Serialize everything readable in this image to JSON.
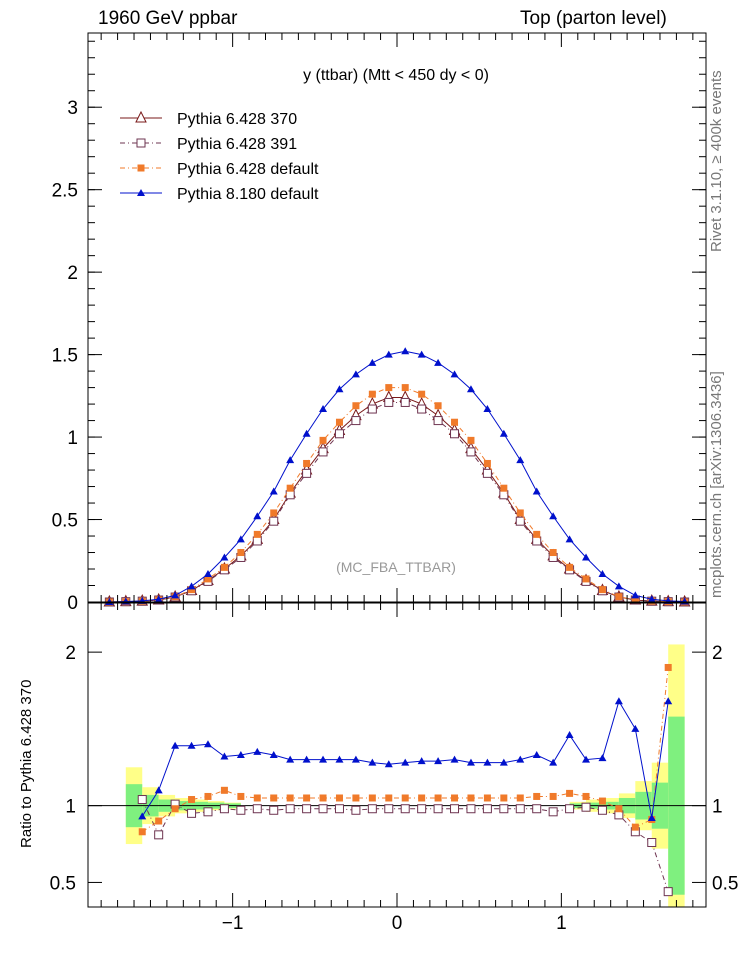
{
  "header": {
    "left": "1960 GeV ppbar",
    "right": "Top (parton level)"
  },
  "side_labels": {
    "rivet": "Rivet 3.1.10, ≥ 400k events",
    "mcplots": "mcplots.cern.ch [arXiv:1306.3436]"
  },
  "colors": {
    "p6_370": "#7a1a1a",
    "p6_391": "#6e3450",
    "p6_default": "#f07a2a",
    "p8": "#0010cc",
    "band_green": "#7ff07f",
    "band_yellow": "#ffff88",
    "watermark": "#999999"
  },
  "chart_data": [
    {
      "type": "line",
      "title": "y (ttbar) (Mtt < 450 dy < 0)",
      "watermark": "(MC_FBA_TTBAR)",
      "xlabel": "",
      "ylabel": "",
      "xlim": [
        -1.88,
        1.88
      ],
      "ylim": [
        0,
        3.45
      ],
      "yticks": [
        0,
        0.5,
        1,
        1.5,
        2,
        2.5,
        3
      ],
      "ytick_labels": [
        "0",
        "0.5",
        "1",
        "1.5",
        "2",
        "2.5",
        "3"
      ],
      "x": [
        -1.75,
        -1.65,
        -1.55,
        -1.45,
        -1.35,
        -1.25,
        -1.15,
        -1.05,
        -0.95,
        -0.85,
        -0.75,
        -0.65,
        -0.55,
        -0.45,
        -0.35,
        -0.25,
        -0.15,
        -0.05,
        0.05,
        0.15,
        0.25,
        0.35,
        0.45,
        0.55,
        0.65,
        0.75,
        0.85,
        0.95,
        1.05,
        1.15,
        1.25,
        1.35,
        1.45,
        1.55,
        1.65,
        1.75
      ],
      "legend": [
        "Pythia 6.428 370",
        "Pythia 6.428 391",
        "Pythia 6.428 default",
        "Pythia 8.180 default"
      ],
      "series": [
        {
          "name": "Pythia 6.428 370",
          "marker": "open-triangle",
          "line": "solid",
          "values": [
            0.0,
            0.002,
            0.005,
            0.012,
            0.03,
            0.07,
            0.13,
            0.2,
            0.28,
            0.38,
            0.5,
            0.66,
            0.8,
            0.93,
            1.04,
            1.13,
            1.2,
            1.24,
            1.24,
            1.2,
            1.13,
            1.04,
            0.93,
            0.8,
            0.66,
            0.5,
            0.38,
            0.28,
            0.2,
            0.13,
            0.07,
            0.03,
            0.012,
            0.005,
            0.002,
            0.0
          ]
        },
        {
          "name": "Pythia 6.428 391",
          "marker": "open-square",
          "line": "dash-dot",
          "values": [
            0.0,
            0.002,
            0.005,
            0.012,
            0.03,
            0.068,
            0.125,
            0.195,
            0.27,
            0.37,
            0.49,
            0.65,
            0.78,
            0.91,
            1.02,
            1.1,
            1.17,
            1.21,
            1.21,
            1.17,
            1.1,
            1.02,
            0.91,
            0.78,
            0.65,
            0.49,
            0.37,
            0.27,
            0.195,
            0.125,
            0.068,
            0.03,
            0.012,
            0.005,
            0.002,
            0.0
          ]
        },
        {
          "name": "Pythia 6.428 default",
          "marker": "filled-square",
          "line": "dash-dot",
          "values": [
            0.0,
            0.002,
            0.005,
            0.013,
            0.032,
            0.075,
            0.14,
            0.21,
            0.3,
            0.41,
            0.54,
            0.69,
            0.84,
            0.98,
            1.09,
            1.19,
            1.26,
            1.3,
            1.3,
            1.26,
            1.19,
            1.09,
            0.98,
            0.84,
            0.69,
            0.54,
            0.41,
            0.3,
            0.21,
            0.14,
            0.075,
            0.032,
            0.013,
            0.005,
            0.002,
            0.0
          ]
        },
        {
          "name": "Pythia 8.180 default",
          "marker": "filled-triangle",
          "line": "solid",
          "values": [
            0.0,
            0.003,
            0.007,
            0.017,
            0.04,
            0.095,
            0.17,
            0.27,
            0.38,
            0.52,
            0.67,
            0.86,
            1.02,
            1.17,
            1.29,
            1.38,
            1.45,
            1.5,
            1.52,
            1.5,
            1.45,
            1.38,
            1.29,
            1.17,
            1.02,
            0.86,
            0.67,
            0.52,
            0.38,
            0.27,
            0.17,
            0.095,
            0.04,
            0.017,
            0.007,
            0.003
          ]
        }
      ]
    },
    {
      "type": "line",
      "title": "",
      "ylabel": "Ratio to Pythia 6.428 370",
      "xlim": [
        -1.88,
        1.88
      ],
      "ylim": [
        0.34,
        2.32
      ],
      "xticks": [
        -1,
        0,
        1
      ],
      "xtick_labels": [
        "−1",
        "0",
        "1"
      ],
      "yticks": [
        0.5,
        1,
        2
      ],
      "ytick_labels": [
        "0.5",
        "1",
        "2"
      ],
      "x": [
        -1.55,
        -1.45,
        -1.35,
        -1.25,
        -1.15,
        -1.05,
        -0.95,
        -0.85,
        -0.75,
        -0.65,
        -0.55,
        -0.45,
        -0.35,
        -0.25,
        -0.15,
        -0.05,
        0.05,
        0.15,
        0.25,
        0.35,
        0.45,
        0.55,
        0.65,
        0.75,
        0.85,
        0.95,
        1.05,
        1.15,
        1.25,
        1.35,
        1.45,
        1.55,
        1.65
      ],
      "band_x": [
        -1.6,
        -1.5,
        -1.4,
        -1.3,
        -1.2,
        -1.1,
        -1.0,
        1.1,
        1.2,
        1.3,
        1.4,
        1.5,
        1.6,
        1.7
      ],
      "band_green": [
        0.14,
        0.07,
        0.04,
        0.03,
        0.025,
        0.02,
        0.015,
        0.015,
        0.02,
        0.025,
        0.05,
        0.09,
        0.15,
        0.58
      ],
      "band_yellow": [
        0.25,
        0.12,
        0.07,
        0.05,
        0.04,
        0.03,
        0.02,
        0.025,
        0.04,
        0.05,
        0.08,
        0.16,
        0.28,
        1.05
      ],
      "series": [
        {
          "name": "Pythia 6.428 391",
          "values": [
            1.04,
            0.81,
            1.01,
            0.95,
            0.96,
            0.98,
            0.97,
            0.98,
            0.97,
            0.98,
            0.98,
            0.98,
            0.98,
            0.97,
            0.98,
            0.98,
            0.98,
            0.98,
            0.98,
            0.98,
            0.98,
            0.98,
            0.98,
            0.98,
            0.98,
            0.96,
            0.98,
            0.99,
            0.97,
            0.94,
            0.83,
            0.76,
            0.44
          ]
        },
        {
          "name": "Pythia 6.428 default",
          "values": [
            0.83,
            0.9,
            0.98,
            1.04,
            1.06,
            1.1,
            1.06,
            1.05,
            1.05,
            1.05,
            1.05,
            1.05,
            1.05,
            1.05,
            1.05,
            1.05,
            1.05,
            1.05,
            1.05,
            1.05,
            1.05,
            1.05,
            1.05,
            1.05,
            1.06,
            1.06,
            1.08,
            1.06,
            1.03,
            0.98,
            0.86,
            0.91,
            1.9
          ]
        },
        {
          "name": "Pythia 8.180 default",
          "values": [
            0.93,
            1.1,
            1.39,
            1.39,
            1.4,
            1.32,
            1.33,
            1.35,
            1.33,
            1.3,
            1.3,
            1.3,
            1.3,
            1.3,
            1.28,
            1.27,
            1.28,
            1.29,
            1.29,
            1.3,
            1.28,
            1.28,
            1.28,
            1.3,
            1.33,
            1.28,
            1.46,
            1.3,
            1.31,
            1.68,
            1.5,
            0.92,
            1.68
          ]
        }
      ]
    }
  ]
}
